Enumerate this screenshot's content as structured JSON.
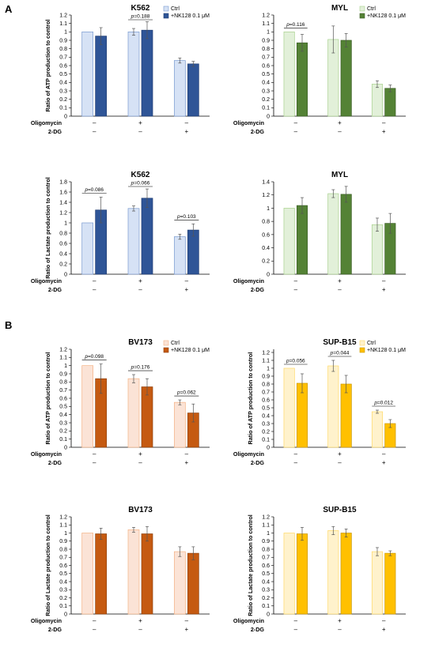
{
  "figure": {
    "panels": [
      {
        "letter": "A"
      },
      {
        "letter": "B"
      }
    ]
  },
  "chart_data": [
    {
      "type": "bar",
      "panel": "A",
      "title": "K562",
      "ylabel": "Ratio of ATP production to control",
      "ylim": [
        0,
        1.2
      ],
      "yticks": [
        "0",
        "0.1",
        "0.2",
        "0.3",
        "0.4",
        "0.5",
        "0.6",
        "0.7",
        "0.8",
        "0.9",
        "1",
        "1.1",
        "1.2"
      ],
      "colors": {
        "ctrl_fill": "#d6e2f5",
        "ctrl_stroke": "#7a9bd0",
        "treat_fill": "#2f5597",
        "treat_stroke": "#1f3d73"
      },
      "legend": [
        "Ctrl",
        "+NK128 0.1 μM"
      ],
      "conditions": {
        "Oligomycin": [
          "–",
          "+",
          "–"
        ],
        "2-DG": [
          "–",
          "–",
          "+"
        ]
      },
      "groups": [
        {
          "ctrl": 1.0,
          "ctrl_err": 0.0,
          "treat": 0.95,
          "treat_err": 0.1,
          "p": null
        },
        {
          "ctrl": 1.0,
          "ctrl_err": 0.04,
          "treat": 1.02,
          "treat_err": 0.1,
          "p": "=0.188"
        },
        {
          "ctrl": 0.66,
          "ctrl_err": 0.03,
          "treat": 0.62,
          "treat_err": 0.03,
          "p": null
        }
      ],
      "p_group": 2,
      "p_text": "=0.188"
    },
    {
      "type": "bar",
      "panel": "A",
      "title": "MYL",
      "ylabel": "",
      "ylim": [
        0,
        1.2
      ],
      "yticks": [
        "0",
        "0.1",
        "0.2",
        "0.3",
        "0.4",
        "0.5",
        "0.6",
        "0.7",
        "0.8",
        "0.9",
        "1",
        "1.1",
        "1.2"
      ],
      "colors": {
        "ctrl_fill": "#e2f0d9",
        "ctrl_stroke": "#a9d18e",
        "treat_fill": "#548235",
        "treat_stroke": "#3b5e25"
      },
      "legend": [
        "Ctrl",
        "+NK128 0.1 μM"
      ],
      "conditions": {
        "Oligomycin": [
          "–",
          "+",
          "–"
        ],
        "2-DG": [
          "–",
          "–",
          "+"
        ]
      },
      "groups": [
        {
          "ctrl": 1.0,
          "ctrl_err": 0.0,
          "treat": 0.87,
          "treat_err": 0.1,
          "p": "=0.116"
        },
        {
          "ctrl": 0.91,
          "ctrl_err": 0.16,
          "treat": 0.9,
          "treat_err": 0.08,
          "p": null
        },
        {
          "ctrl": 0.38,
          "ctrl_err": 0.04,
          "treat": 0.33,
          "treat_err": 0.04,
          "p": null
        }
      ]
    },
    {
      "type": "bar",
      "panel": "A",
      "title": "K562",
      "ylabel": "Ratio of Lactate production to control",
      "ylim": [
        0,
        1.8
      ],
      "yticks": [
        "0",
        "0.2",
        "0.4",
        "0.6",
        "0.8",
        "1",
        "1.2",
        "1.4",
        "1.6",
        "1.8"
      ],
      "colors": {
        "ctrl_fill": "#d6e2f5",
        "ctrl_stroke": "#7a9bd0",
        "treat_fill": "#2f5597",
        "treat_stroke": "#1f3d73"
      },
      "legend": [],
      "conditions": {
        "Oligomycin": [
          "–",
          "+",
          "–"
        ],
        "2-DG": [
          "–",
          "–",
          "+"
        ]
      },
      "groups": [
        {
          "ctrl": 1.0,
          "ctrl_err": 0.0,
          "treat": 1.25,
          "treat_err": 0.25,
          "p": "=0.086"
        },
        {
          "ctrl": 1.28,
          "ctrl_err": 0.05,
          "treat": 1.48,
          "treat_err": 0.18,
          "p": "=0.066"
        },
        {
          "ctrl": 0.73,
          "ctrl_err": 0.05,
          "treat": 0.86,
          "treat_err": 0.12,
          "p": "=0.103"
        }
      ]
    },
    {
      "type": "bar",
      "panel": "A",
      "title": "MYL",
      "ylabel": "",
      "ylim": [
        0,
        1.4
      ],
      "yticks": [
        "0",
        "0.2",
        "0.4",
        "0.6",
        "0.8",
        "1",
        "1.2",
        "1.4"
      ],
      "colors": {
        "ctrl_fill": "#e2f0d9",
        "ctrl_stroke": "#a9d18e",
        "treat_fill": "#548235",
        "treat_stroke": "#3b5e25"
      },
      "legend": [],
      "conditions": {
        "Oligomycin": [
          "–",
          "+",
          "–"
        ],
        "2-DG": [
          "–",
          "–",
          "+"
        ]
      },
      "groups": [
        {
          "ctrl": 1.0,
          "ctrl_err": 0.0,
          "treat": 1.04,
          "treat_err": 0.12,
          "p": null
        },
        {
          "ctrl": 1.22,
          "ctrl_err": 0.06,
          "treat": 1.21,
          "treat_err": 0.12,
          "p": null
        },
        {
          "ctrl": 0.75,
          "ctrl_err": 0.1,
          "treat": 0.77,
          "treat_err": 0.15,
          "p": null
        }
      ]
    },
    {
      "type": "bar",
      "panel": "B",
      "title": "BV173",
      "ylabel": "Ratio of ATP production to control",
      "ylim": [
        0,
        1.2
      ],
      "yticks": [
        "0",
        "0.1",
        "0.2",
        "0.3",
        "0.4",
        "0.5",
        "0.6",
        "0.7",
        "0.8",
        "0.9",
        "1",
        "1.1",
        "1.2"
      ],
      "colors": {
        "ctrl_fill": "#fbe3d6",
        "ctrl_stroke": "#f4b183",
        "treat_fill": "#c55a11",
        "treat_stroke": "#8f400c"
      },
      "legend": [
        "Ctrl",
        "+NK128 0.1 μM"
      ],
      "conditions": {
        "Oligomycin": [
          "–",
          "+",
          "–"
        ],
        "2-DG": [
          "–",
          "–",
          "+"
        ]
      },
      "groups": [
        {
          "ctrl": 1.0,
          "ctrl_err": 0.0,
          "treat": 0.84,
          "treat_err": 0.18,
          "p": "=0.098"
        },
        {
          "ctrl": 0.84,
          "ctrl_err": 0.05,
          "treat": 0.74,
          "treat_err": 0.1,
          "p": "=0.176"
        },
        {
          "ctrl": 0.55,
          "ctrl_err": 0.03,
          "treat": 0.42,
          "treat_err": 0.11,
          "p": "=0.062"
        }
      ]
    },
    {
      "type": "bar",
      "panel": "B",
      "title": "SUP-B15",
      "ylabel": "Ratio of ATP production to control",
      "ylim": [
        0,
        1.24
      ],
      "yticks": [
        "0",
        "0.1",
        "0.2",
        "0.3",
        "0.4",
        "0.5",
        "0.6",
        "0.7",
        "0.8",
        "0.9",
        "1",
        "1.1",
        "1.2"
      ],
      "colors": {
        "ctrl_fill": "#fff2cc",
        "ctrl_stroke": "#ffd966",
        "treat_fill": "#ffc000",
        "treat_stroke": "#c99700"
      },
      "legend": [
        "Ctrl",
        "+NK128 0.1 μM"
      ],
      "conditions": {
        "Oligomycin": [
          "–",
          "+",
          "–"
        ],
        "2-DG": [
          "–",
          "–",
          "+"
        ]
      },
      "groups": [
        {
          "ctrl": 1.0,
          "ctrl_err": 0.0,
          "treat": 0.81,
          "treat_err": 0.12,
          "p": "=0.056"
        },
        {
          "ctrl": 1.03,
          "ctrl_err": 0.07,
          "treat": 0.8,
          "treat_err": 0.11,
          "p": "=0.044"
        },
        {
          "ctrl": 0.45,
          "ctrl_err": 0.02,
          "treat": 0.3,
          "treat_err": 0.05,
          "p": "=0.012"
        }
      ]
    },
    {
      "type": "bar",
      "panel": "B",
      "title": "BV173",
      "ylabel": "Ratio of Lactate production to control",
      "ylim": [
        0,
        1.2
      ],
      "yticks": [
        "0",
        "0.1",
        "0.2",
        "0.3",
        "0.4",
        "0.5",
        "0.6",
        "0.7",
        "0.8",
        "0.9",
        "1",
        "1.1",
        "1.2"
      ],
      "colors": {
        "ctrl_fill": "#fbe3d6",
        "ctrl_stroke": "#f4b183",
        "treat_fill": "#c55a11",
        "treat_stroke": "#8f400c"
      },
      "legend": [],
      "conditions": {
        "Oligomycin": [
          "–",
          "+",
          "–"
        ],
        "2-DG": [
          "–",
          "–",
          "+"
        ]
      },
      "groups": [
        {
          "ctrl": 1.0,
          "ctrl_err": 0.0,
          "treat": 0.99,
          "treat_err": 0.07,
          "p": null
        },
        {
          "ctrl": 1.04,
          "ctrl_err": 0.03,
          "treat": 0.99,
          "treat_err": 0.09,
          "p": null
        },
        {
          "ctrl": 0.77,
          "ctrl_err": 0.06,
          "treat": 0.75,
          "treat_err": 0.08,
          "p": null
        }
      ]
    },
    {
      "type": "bar",
      "panel": "B",
      "title": "SUP-B15",
      "ylabel": "Ratio of Lactate production to control",
      "ylim": [
        0,
        1.2
      ],
      "yticks": [
        "0",
        "0.1",
        "0.2",
        "0.3",
        "0.4",
        "0.5",
        "0.6",
        "0.7",
        "0.8",
        "0.9",
        "1",
        "1.1",
        "1.2"
      ],
      "colors": {
        "ctrl_fill": "#fff2cc",
        "ctrl_stroke": "#ffd966",
        "treat_fill": "#ffc000",
        "treat_stroke": "#c99700"
      },
      "legend": [],
      "conditions": {
        "Oligomycin": [
          "–",
          "+",
          "–"
        ],
        "2-DG": [
          "–",
          "–",
          "+"
        ]
      },
      "groups": [
        {
          "ctrl": 1.0,
          "ctrl_err": 0.0,
          "treat": 0.99,
          "treat_err": 0.08,
          "p": null
        },
        {
          "ctrl": 1.03,
          "ctrl_err": 0.05,
          "treat": 1.0,
          "treat_err": 0.05,
          "p": null
        },
        {
          "ctrl": 0.77,
          "ctrl_err": 0.05,
          "treat": 0.75,
          "treat_err": 0.03,
          "p": null
        }
      ]
    }
  ]
}
